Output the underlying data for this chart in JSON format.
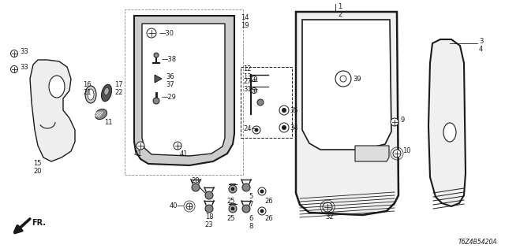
{
  "bg_color": "#ffffff",
  "diagram_code": "T6Z4B5420A",
  "black": "#1a1a1a",
  "gray_fill": "#e8e8e8",
  "light_gray": "#f2f2f2"
}
